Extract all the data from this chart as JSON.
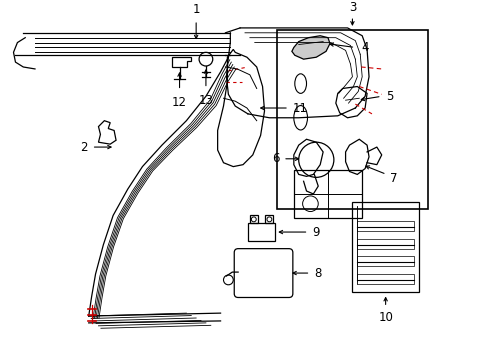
{
  "background_color": "#ffffff",
  "line_color": "#000000",
  "red_color": "#cc0000",
  "figsize": [
    4.89,
    3.6
  ],
  "dpi": 100
}
